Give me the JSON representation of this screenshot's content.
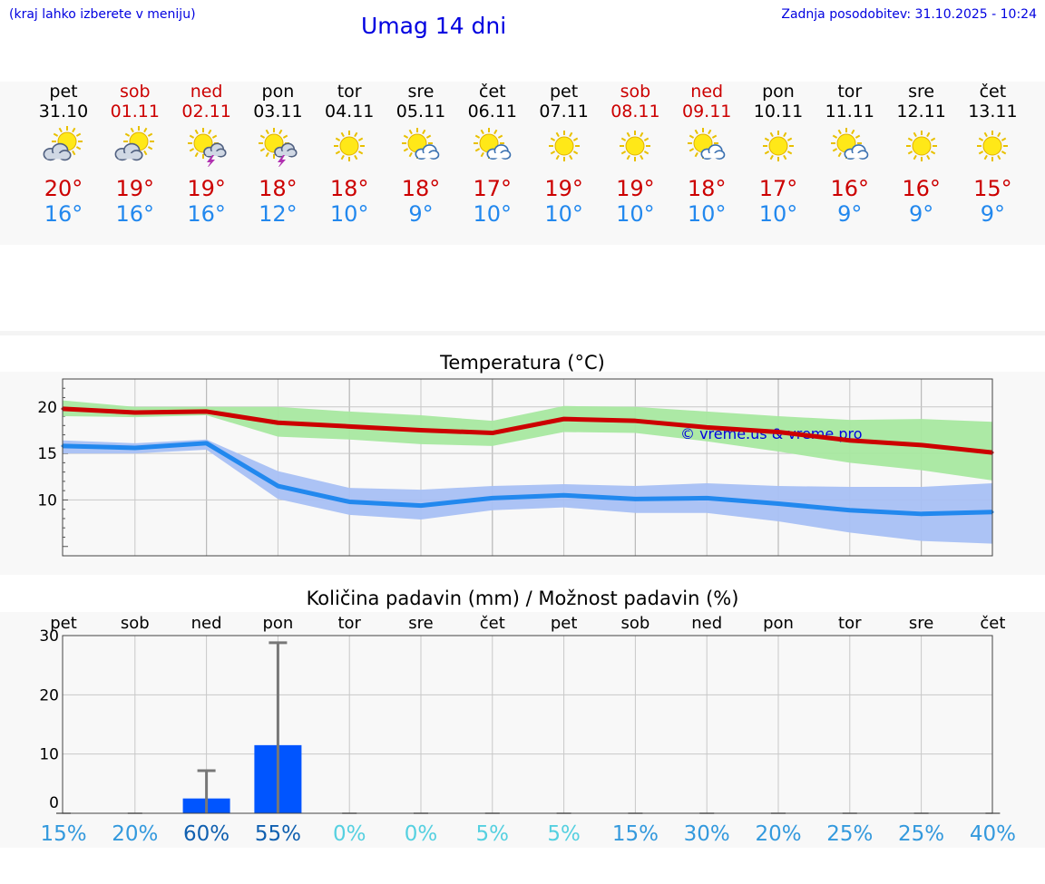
{
  "header": {
    "hint": "(kraj lahko izberete v meniju)",
    "title": "Umag 14 dni",
    "updated": "Zadnja posodobitev: 31.10.2025 - 10:24"
  },
  "days": [
    {
      "name": "pet",
      "date": "31.10",
      "icon": "cloudy-sun-icon",
      "max": "20°",
      "min": "16°",
      "weekend": false
    },
    {
      "name": "sob",
      "date": "01.11",
      "icon": "cloudy-sun-icon",
      "max": "19°",
      "min": "16°",
      "weekend": true
    },
    {
      "name": "ned",
      "date": "02.11",
      "icon": "thunder-sun-icon",
      "max": "19°",
      "min": "16°",
      "weekend": true
    },
    {
      "name": "pon",
      "date": "03.11",
      "icon": "thunder-sun-icon",
      "max": "18°",
      "min": "12°",
      "weekend": false
    },
    {
      "name": "tor",
      "date": "04.11",
      "icon": "sun-icon",
      "max": "18°",
      "min": "10°",
      "weekend": false
    },
    {
      "name": "sre",
      "date": "05.11",
      "icon": "partly-cloudy-icon",
      "max": "18°",
      "min": "9°",
      "weekend": false
    },
    {
      "name": "čet",
      "date": "06.11",
      "icon": "partly-cloudy-icon",
      "max": "17°",
      "min": "10°",
      "weekend": false
    },
    {
      "name": "pet",
      "date": "07.11",
      "icon": "sun-icon",
      "max": "19°",
      "min": "10°",
      "weekend": false
    },
    {
      "name": "sob",
      "date": "08.11",
      "icon": "sun-icon",
      "max": "19°",
      "min": "10°",
      "weekend": true
    },
    {
      "name": "ned",
      "date": "09.11",
      "icon": "partly-cloudy-icon",
      "max": "18°",
      "min": "10°",
      "weekend": true
    },
    {
      "name": "pon",
      "date": "10.11",
      "icon": "sun-icon",
      "max": "17°",
      "min": "10°",
      "weekend": false
    },
    {
      "name": "tor",
      "date": "11.11",
      "icon": "partly-cloudy-icon",
      "max": "16°",
      "min": "9°",
      "weekend": false
    },
    {
      "name": "sre",
      "date": "12.11",
      "icon": "sun-icon",
      "max": "16°",
      "min": "9°",
      "weekend": false
    },
    {
      "name": "čet",
      "date": "13.11",
      "icon": "sun-icon",
      "max": "15°",
      "min": "9°",
      "weekend": false
    }
  ],
  "colors": {
    "max": "#cc0000",
    "min": "#2288ee",
    "maxBand": "#a8e8a0",
    "minBand": "#a8c0f4",
    "bar": "#0055ff",
    "err": "#777777",
    "grid": "#c8c8c8"
  },
  "chart_data": [
    {
      "type": "line",
      "title": "Temperatura (°C)",
      "watermark": "© vreme.us & vreme.pro",
      "ylim": [
        4,
        23
      ],
      "yticks": [
        10,
        15,
        20
      ],
      "x": [
        "pet",
        "sob",
        "ned",
        "pon",
        "tor",
        "sre",
        "čet",
        "pet",
        "sob",
        "ned",
        "pon",
        "tor",
        "sre",
        "čet"
      ],
      "series": [
        {
          "name": "max",
          "values": [
            19.8,
            19.4,
            19.5,
            18.3,
            17.9,
            17.5,
            17.2,
            18.7,
            18.5,
            17.8,
            17.3,
            16.4,
            15.9,
            15.1
          ],
          "band_low": [
            19.0,
            18.9,
            19.1,
            16.8,
            16.5,
            16.0,
            15.8,
            17.3,
            17.2,
            16.3,
            15.2,
            14.0,
            13.2,
            12.1
          ],
          "band_high": [
            20.7,
            20.0,
            20.0,
            20.0,
            19.5,
            19.1,
            18.5,
            20.1,
            20.0,
            19.5,
            19.0,
            18.6,
            18.7,
            18.4
          ]
        },
        {
          "name": "min",
          "values": [
            15.8,
            15.6,
            16.1,
            11.5,
            9.8,
            9.4,
            10.2,
            10.5,
            10.1,
            10.2,
            9.6,
            8.9,
            8.5,
            8.7
          ],
          "band_low": [
            15.0,
            15.0,
            15.4,
            10.1,
            8.4,
            7.9,
            8.9,
            9.2,
            8.6,
            8.6,
            7.7,
            6.5,
            5.6,
            5.3
          ],
          "band_high": [
            16.4,
            16.1,
            16.5,
            13.1,
            11.3,
            11.1,
            11.5,
            11.7,
            11.5,
            11.8,
            11.5,
            11.4,
            11.4,
            11.8
          ]
        }
      ]
    },
    {
      "type": "bar",
      "title": "Količina padavin (mm) / Možnost padavin (%)",
      "ylim": [
        0,
        30
      ],
      "yticks": [
        0,
        10,
        20,
        30
      ],
      "categories": [
        "pet",
        "sob",
        "ned",
        "pon",
        "tor",
        "sre",
        "čet",
        "pet",
        "sob",
        "ned",
        "pon",
        "tor",
        "sre",
        "čet"
      ],
      "values": [
        0,
        0,
        2.5,
        11.5,
        0,
        0,
        0,
        0,
        0,
        0,
        0,
        0,
        0,
        0
      ],
      "error_high": [
        0,
        0,
        7.2,
        28.8,
        0,
        0,
        0,
        0,
        0,
        0,
        0,
        0,
        0,
        0
      ],
      "probability": [
        "15%",
        "20%",
        "60%",
        "55%",
        "0%",
        "0%",
        "5%",
        "5%",
        "15%",
        "30%",
        "20%",
        "25%",
        "25%",
        "40%"
      ],
      "probability_values": [
        15,
        20,
        60,
        55,
        0,
        0,
        5,
        5,
        15,
        30,
        20,
        25,
        25,
        40
      ]
    }
  ]
}
